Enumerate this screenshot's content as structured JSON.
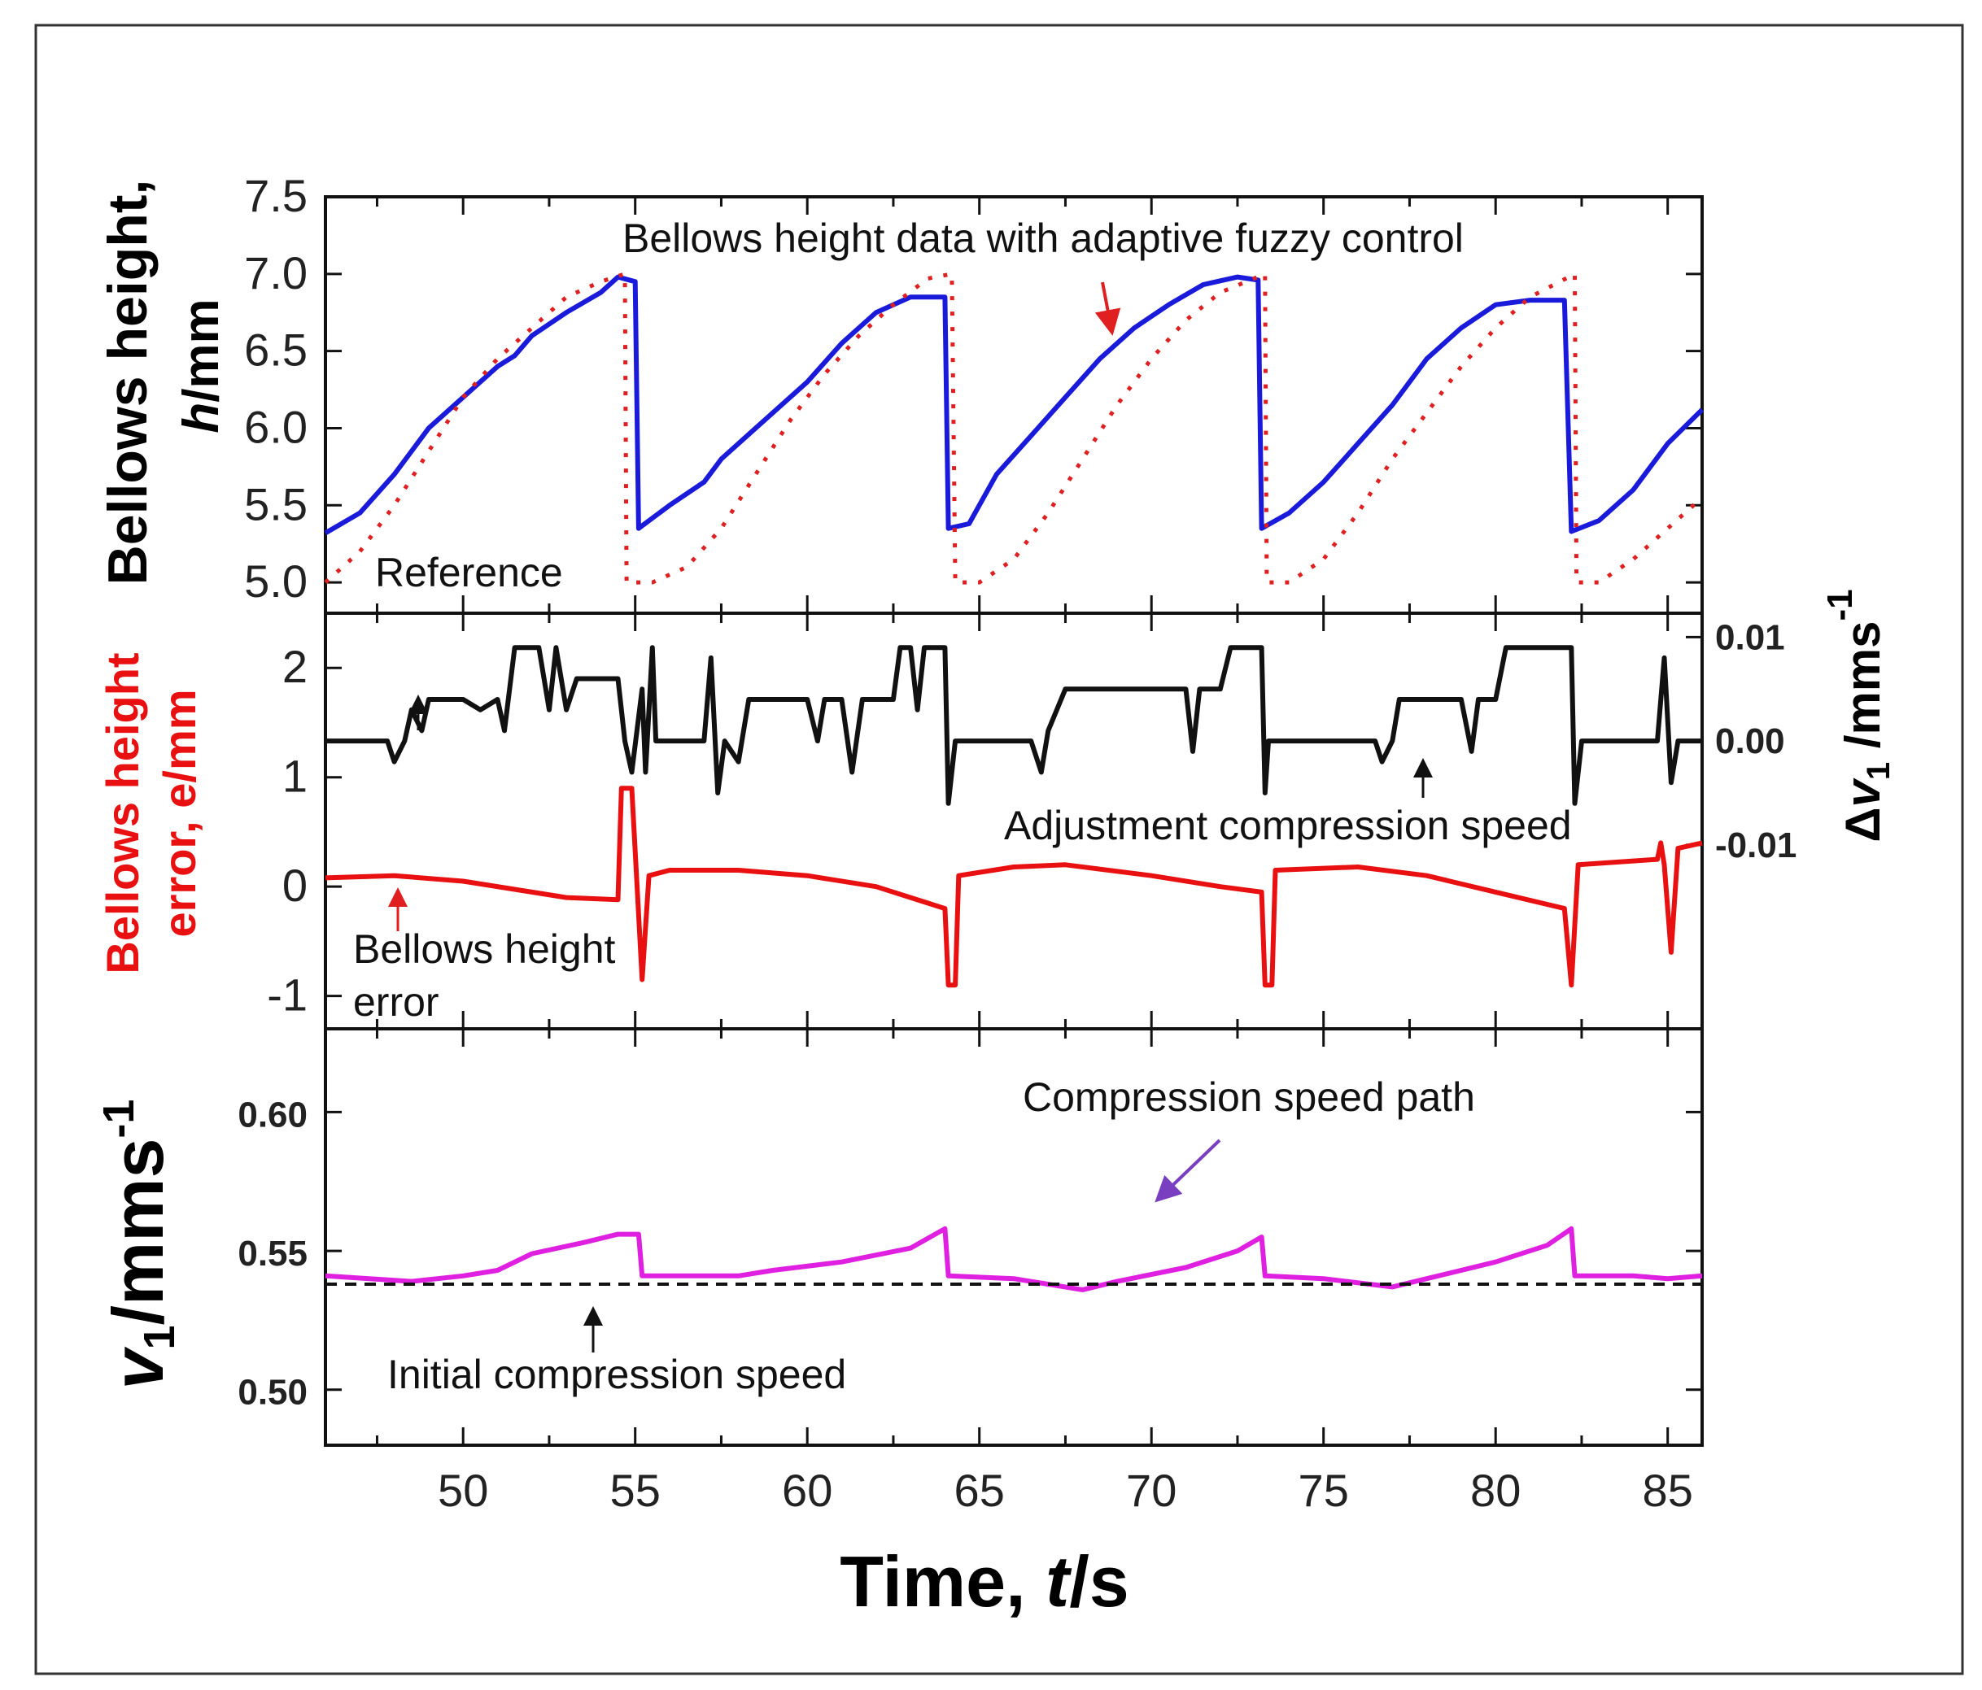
{
  "chart_data": {
    "type": "line",
    "xlabel": {
      "main": "Time, ",
      "italic": "t",
      "unit": "/s"
    },
    "xlim": [
      46,
      86
    ],
    "xticks": [
      50,
      55,
      60,
      65,
      70,
      75,
      80,
      85
    ],
    "panels": [
      {
        "id": "height",
        "ylabel_line1": "Bellows height,",
        "ylabel_line2_italic": "h",
        "ylabel_line2_unit": "/mm",
        "ylim": [
          4.8,
          7.5
        ],
        "yticks": [
          "5.0",
          "5.5",
          "6.0",
          "6.5",
          "7.0",
          "7.5"
        ],
        "series": [
          {
            "name": "Bellows height data with adaptive fuzzy control",
            "color": "#1a1adb",
            "style": "solid",
            "x": [
              46,
              47,
              48,
              49,
              50,
              51,
              51.5,
              52,
              53,
              54,
              54.5,
              55.0,
              55.1,
              56,
              57,
              57.5,
              58.5,
              59,
              60,
              61,
              62,
              63,
              64.0,
              64.1,
              64.7,
              65.5,
              66.5,
              67.5,
              68.5,
              69.5,
              70.5,
              71.5,
              72.5,
              73.1,
              73.2,
              74,
              75,
              76,
              77,
              77.5,
              78,
              79,
              80,
              81,
              82.0,
              82.2,
              83,
              84,
              85,
              86
            ],
            "y": [
              5.32,
              5.45,
              5.7,
              6.0,
              6.2,
              6.4,
              6.47,
              6.6,
              6.75,
              6.88,
              6.98,
              6.95,
              5.35,
              5.5,
              5.65,
              5.8,
              6.0,
              6.1,
              6.3,
              6.55,
              6.75,
              6.85,
              6.85,
              5.35,
              5.38,
              5.7,
              5.95,
              6.2,
              6.45,
              6.65,
              6.8,
              6.93,
              6.98,
              6.96,
              5.35,
              5.45,
              5.65,
              5.9,
              6.15,
              6.3,
              6.45,
              6.65,
              6.8,
              6.83,
              6.83,
              5.33,
              5.4,
              5.6,
              5.9,
              6.12
            ]
          },
          {
            "name": "Reference",
            "color": "#e02020",
            "style": "dotted",
            "x": [
              46,
              47,
              48,
              49,
              50,
              51,
              52,
              53,
              54,
              54.7,
              54.75,
              55.5,
              56.5,
              57.5,
              58.5,
              59.5,
              60.5,
              61.5,
              62.5,
              63.5,
              64.2,
              64.3,
              65,
              66,
              67,
              68,
              69,
              70,
              71,
              72,
              73.3,
              73.35,
              74,
              75,
              76,
              77,
              78,
              79,
              80,
              81,
              82.3,
              82.35,
              83,
              84,
              85,
              86
            ],
            "y": [
              5.0,
              5.2,
              5.5,
              5.85,
              6.2,
              6.45,
              6.65,
              6.85,
              6.95,
              7.0,
              5.0,
              5.0,
              5.1,
              5.35,
              5.7,
              6.05,
              6.35,
              6.6,
              6.8,
              6.97,
              7.0,
              5.0,
              5.0,
              5.15,
              5.45,
              5.8,
              6.15,
              6.45,
              6.7,
              6.88,
              7.0,
              5.0,
              5.0,
              5.15,
              5.45,
              5.8,
              6.1,
              6.4,
              6.65,
              6.85,
              7.0,
              5.0,
              5.0,
              5.15,
              5.35,
              5.55
            ]
          }
        ]
      },
      {
        "id": "error",
        "ylabel_line1": "Bellows height",
        "ylabel_line2": "error, e/mm",
        "ylim": [
          -1.3,
          2.5
        ],
        "yticks": [
          "-1",
          "0",
          "1",
          "2"
        ],
        "y2label": {
          "delta": "Δ",
          "v": "v",
          "sub": "1",
          "unit": " /mms",
          "sup": "-1"
        },
        "y2lim": [
          -0.0277,
          0.0123
        ],
        "y2ticks": [
          "-0.01",
          "0.00",
          "0.01"
        ],
        "series": [
          {
            "name": "Bellows height error",
            "axis": "left",
            "color": "#e81010",
            "x": [
              46,
              48,
              50,
              52,
              53,
              54.5,
              54.6,
              54.9,
              55.2,
              55.4,
              56,
              58,
              60,
              62,
              64,
              64.1,
              64.3,
              64.4,
              66,
              67.5,
              70,
              72,
              73.2,
              73.3,
              73.5,
              73.6,
              76,
              78,
              80,
              82.0,
              82.2,
              82.4,
              84.7,
              84.8,
              84.9,
              85.1,
              85.3,
              86
            ],
            "y": [
              0.08,
              0.1,
              0.05,
              -0.05,
              -0.1,
              -0.12,
              0.9,
              0.9,
              -0.85,
              0.1,
              0.15,
              0.15,
              0.1,
              0.0,
              -0.2,
              -0.9,
              -0.9,
              0.1,
              0.18,
              0.2,
              0.1,
              0.0,
              -0.05,
              -0.9,
              -0.9,
              0.15,
              0.18,
              0.1,
              -0.05,
              -0.2,
              -0.9,
              0.2,
              0.25,
              0.4,
              0.2,
              -0.6,
              0.35,
              0.4
            ]
          },
          {
            "name": "Adjustment compression speed",
            "axis": "right",
            "color": "#111111",
            "x": [
              46,
              47.8,
              48,
              48.3,
              48.5,
              48.8,
              49,
              50,
              50.5,
              51,
              51.2,
              51.5,
              52.2,
              52.5,
              52.7,
              53,
              53.3,
              54.5,
              54.7,
              54.9,
              55.2,
              55.3,
              55.5,
              55.6,
              57,
              57.2,
              57.4,
              57.6,
              58,
              58.3,
              60,
              60.3,
              60.5,
              61,
              61.3,
              61.6,
              62.5,
              62.7,
              63,
              63.2,
              63.4,
              64,
              64.1,
              64.3,
              66.5,
              66.8,
              67,
              67.5,
              71,
              71.2,
              71.4,
              72,
              72.3,
              73.2,
              73.3,
              73.4,
              76.5,
              76.7,
              77,
              77.2,
              78,
              79,
              79.3,
              79.5,
              80,
              80.3,
              82.2,
              82.3,
              82.5,
              84.7,
              84.9,
              85.1,
              85.3,
              86
            ],
            "y": [
              0,
              0,
              -0.002,
              0,
              0.003,
              0.001,
              0.004,
              0.004,
              0.003,
              0.004,
              0.001,
              0.009,
              0.009,
              0.003,
              0.009,
              0.003,
              0.006,
              0.006,
              0.0,
              -0.003,
              0.005,
              -0.003,
              0.009,
              0.0,
              0.0,
              0.008,
              -0.005,
              0.0,
              -0.002,
              0.004,
              0.004,
              0.0,
              0.004,
              0.004,
              -0.003,
              0.004,
              0.004,
              0.009,
              0.009,
              0.003,
              0.009,
              0.009,
              -0.006,
              0.0,
              0.0,
              -0.003,
              0.001,
              0.005,
              0.005,
              -0.001,
              0.005,
              0.005,
              0.009,
              0.009,
              -0.005,
              0.0,
              0.0,
              -0.002,
              0.0,
              0.004,
              0.004,
              0.004,
              -0.001,
              0.004,
              0.004,
              0.009,
              0.009,
              -0.006,
              0.0,
              0.0,
              0.008,
              -0.004,
              0.0,
              0.0
            ]
          }
        ]
      },
      {
        "id": "speed",
        "ylabel": {
          "v": "v",
          "sub": "1",
          "unit": "/mms",
          "sup": "-1"
        },
        "ylim": [
          0.48,
          0.63
        ],
        "yticks": [
          "0.50",
          "0.55",
          "0.60"
        ],
        "series": [
          {
            "name": "Compression speed path",
            "color": "#e020e0",
            "style": "solid",
            "x": [
              46,
              48.5,
              50,
              51,
              52,
              53.5,
              54.5,
              55.1,
              55.2,
              57,
              58,
              59,
              61,
              63,
              64.0,
              64.1,
              66,
              68,
              69,
              71,
              72.5,
              73.2,
              73.3,
              75,
              77,
              78,
              80,
              81.5,
              82.2,
              82.3,
              84,
              85,
              86
            ],
            "y": [
              0.541,
              0.539,
              0.541,
              0.543,
              0.549,
              0.553,
              0.556,
              0.556,
              0.541,
              0.541,
              0.541,
              0.543,
              0.546,
              0.551,
              0.558,
              0.541,
              0.54,
              0.536,
              0.539,
              0.544,
              0.55,
              0.555,
              0.541,
              0.54,
              0.537,
              0.54,
              0.546,
              0.552,
              0.558,
              0.541,
              0.541,
              0.54,
              0.541
            ]
          },
          {
            "name": "Initial compression speed",
            "color": "#111111",
            "style": "dashed",
            "x": [
              46,
              86
            ],
            "y": [
              0.538,
              0.538
            ]
          }
        ]
      }
    ],
    "annotations": {
      "fuzzy": "Bellows height data with adaptive fuzzy control",
      "reference": "Reference",
      "adjustment": "Adjustment compression speed",
      "error_line1": "Bellows height",
      "error_line2": "error",
      "path": "Compression speed path",
      "initial": "Initial compression speed"
    }
  }
}
